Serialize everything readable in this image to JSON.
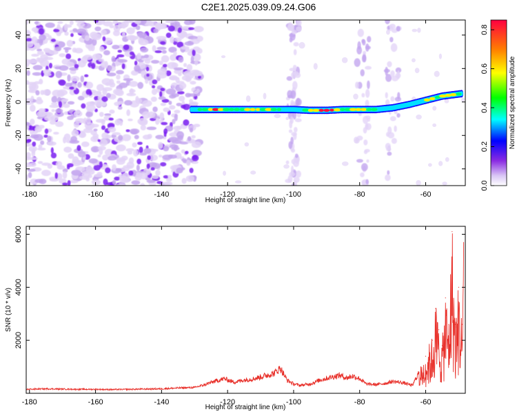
{
  "title": "C2E1.2025.039.09.24.G06",
  "colors": {
    "snr_line": "#e8302a",
    "ridge_low": "#1010ff",
    "ridge_mid": "#00e0ff",
    "ridge_high": "#ffee00",
    "ridge_peak": "#ff1040",
    "noise_light": "#e3d4f7",
    "noise_mid": "#c3a6ef",
    "noise_dark": "#7a1ef0"
  },
  "chart_data": [
    {
      "type": "heatmap",
      "name": "spectrogram",
      "title": "C2E1.2025.039.09.24.G06",
      "xlabel": "Height of straight line (km)",
      "ylabel": "Frequency (Hz)",
      "xlim": [
        -181,
        -48
      ],
      "ylim": [
        -50,
        49
      ],
      "x_ticks": [
        -180,
        -160,
        -140,
        -120,
        -100,
        -80,
        -60
      ],
      "y_ticks": [
        -40,
        -20,
        0,
        20,
        40
      ],
      "ridge": {
        "description": "signal ridge frequency vs height",
        "x": [
          -131,
          -125,
          -120,
          -115,
          -110,
          -105,
          -100,
          -95,
          -90,
          -85,
          -80,
          -75,
          -70,
          -65,
          -60,
          -55,
          -49
        ],
        "y": [
          -4.5,
          -4.5,
          -4.5,
          -4.5,
          -4.5,
          -4.5,
          -4.5,
          -5,
          -5,
          -4.5,
          -4.5,
          -4.5,
          -3.5,
          -1.5,
          1,
          3.5,
          5
        ],
        "amplitude": [
          0.35,
          0.85,
          0.5,
          0.75,
          0.6,
          0.5,
          0.35,
          0.55,
          0.9,
          0.6,
          0.8,
          0.45,
          0.35,
          0.4,
          0.55,
          0.6,
          0.55
        ]
      },
      "noise_region_x": [
        -181,
        -130
      ],
      "noise_columns_x": [
        -100,
        -79,
        -70
      ],
      "colorbar": {
        "label": "Normalized spectral amplitude",
        "range": [
          0.0,
          0.85
        ],
        "ticks": [
          "0.0",
          "0.2",
          "0.4",
          "0.6",
          "0.8"
        ],
        "colors": [
          "#ffffff",
          "#d9c6f5",
          "#8a2be2",
          "#0000ff",
          "#00ffff",
          "#00ff00",
          "#ffff00",
          "#ff8000",
          "#ff0040"
        ]
      }
    },
    {
      "type": "line",
      "name": "snr",
      "xlabel": "Height of straight line (km)",
      "ylabel": "SNR (10 * v/v)",
      "xlim": [
        -181,
        -48
      ],
      "ylim": [
        0,
        6300
      ],
      "x_ticks": [
        -180,
        -160,
        -140,
        -120,
        -100,
        -80,
        -60
      ],
      "y_ticks": [
        2000,
        4000,
        6000
      ],
      "series": [
        {
          "name": "SNR",
          "x": [
            -181,
            -175,
            -170,
            -165,
            -160,
            -155,
            -150,
            -145,
            -140,
            -135,
            -130,
            -127,
            -124,
            -121,
            -118,
            -115,
            -112,
            -109,
            -106,
            -104,
            -102,
            -100,
            -98,
            -95,
            -92,
            -89,
            -86,
            -84,
            -82,
            -80,
            -78,
            -75,
            -72,
            -70,
            -67,
            -64,
            -62,
            -60,
            -58,
            -57,
            -56,
            -55,
            -54,
            -53,
            -52,
            -51,
            -50,
            -49,
            -48.5
          ],
          "y": [
            150,
            170,
            160,
            150,
            150,
            140,
            150,
            160,
            170,
            200,
            220,
            320,
            450,
            550,
            420,
            500,
            550,
            650,
            750,
            950,
            500,
            350,
            300,
            350,
            500,
            600,
            680,
            580,
            650,
            550,
            350,
            330,
            380,
            450,
            400,
            300,
            800,
            1400,
            2000,
            3200,
            2400,
            1800,
            3600,
            2600,
            6100,
            2600,
            4000,
            2600,
            6300
          ]
        }
      ]
    }
  ]
}
